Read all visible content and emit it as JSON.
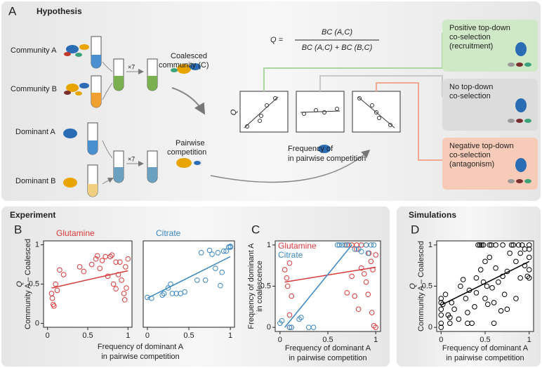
{
  "figure": {
    "panel_a": {
      "letter": "A",
      "title": "Hypothesis",
      "community_a": "Community A",
      "community_b": "Community B",
      "coalesced": [
        "Coalesced",
        "community (C)"
      ],
      "times_top": "×7",
      "dominant_a": "Dominant A",
      "dominant_b": "Dominant B",
      "pairwise": [
        "Pairwise",
        "competition"
      ],
      "times_bottom": "×7",
      "q_eq": "Q =",
      "numerator": "BC (A,C)",
      "denominator": "BC (A,C) + BC (B,C)",
      "q_axis": "Q",
      "freq_label": [
        "Frequency of",
        "in pairwise competition"
      ],
      "positive": [
        "Positive top-down",
        "co-selection",
        "(recruitment)"
      ],
      "none": [
        "No top-down",
        "co-selection"
      ],
      "negative": [
        "Negative top-down",
        "co-selection",
        "(antagonism)"
      ]
    },
    "experiment": {
      "title": "Experiment",
      "b": "B",
      "c": "C",
      "b_xlabel": [
        "Frequency of dominant A",
        "in pairwise competition"
      ]
    },
    "simulations": {
      "title": "Simulations",
      "d": "D"
    }
  },
  "chart_data": [
    {
      "type": "scatter",
      "xlim": [
        -0.05,
        1.05
      ],
      "ylim": [
        -0.05,
        1.05
      ],
      "xticks": [
        0,
        0.5,
        1
      ],
      "yticks": [
        0,
        0.5,
        1
      ],
      "ylabel": [
        "Q",
        "Community A – Coalesced"
      ],
      "series": [
        {
          "name": "Glutamine",
          "color": "#d93a3a",
          "x": [
            0.05,
            0.06,
            0.07,
            0.08,
            0.1,
            0.12,
            0.15,
            0.2,
            0.4,
            0.45,
            0.55,
            0.6,
            0.62,
            0.65,
            0.68,
            0.72,
            0.75,
            0.78,
            0.8,
            0.82,
            0.85,
            0.88,
            0.9,
            0.92,
            0.95,
            0.96,
            0.98,
            1.0,
            0.97,
            0.85
          ],
          "y": [
            0.38,
            0.32,
            0.24,
            0.22,
            0.5,
            0.42,
            0.68,
            0.62,
            0.72,
            0.66,
            0.75,
            0.82,
            0.86,
            0.7,
            0.8,
            0.85,
            0.6,
            0.85,
            0.87,
            0.5,
            0.44,
            0.62,
            0.78,
            0.55,
            0.38,
            0.3,
            0.45,
            0.82,
            0.72,
            0.78
          ],
          "fit": {
            "x": [
              0.05,
              1
            ],
            "y": [
              0.45,
              0.67
            ]
          }
        }
      ]
    },
    {
      "type": "scatter",
      "xlim": [
        -0.05,
        1.05
      ],
      "ylim": [
        -0.05,
        1.05
      ],
      "xticks": [
        0,
        0.5,
        1
      ],
      "series": [
        {
          "name": "Citrate",
          "color": "#3a86c0",
          "x": [
            0,
            0.05,
            0.18,
            0.2,
            0.25,
            0.28,
            0.3,
            0.35,
            0.4,
            0.45,
            0.6,
            0.65,
            0.7,
            0.75,
            0.78,
            0.82,
            0.85,
            0.88,
            0.9,
            0.92,
            0.95,
            0.98,
            1,
            1
          ],
          "y": [
            0.33,
            0.32,
            0.36,
            0.38,
            0.45,
            0.5,
            0.38,
            0.38,
            0.38,
            0.4,
            0.55,
            0.9,
            0.55,
            0.93,
            0.88,
            0.7,
            0.9,
            0.48,
            0.65,
            0.92,
            0.92,
            0.97,
            0.97,
            0.98
          ],
          "fit": {
            "x": [
              0,
              1
            ],
            "y": [
              0.32,
              0.85
            ]
          }
        }
      ]
    },
    {
      "type": "scatter",
      "xlim": [
        -0.05,
        1.05
      ],
      "ylim": [
        -0.05,
        1.05
      ],
      "xticks": [
        0,
        0.5,
        1
      ],
      "yticks": [
        0,
        0.5,
        1
      ],
      "xlabel": [
        "Frequency of dominant A",
        "in pairwise competition"
      ],
      "ylabel": [
        "Frequency of dominant A",
        "in coalescence"
      ],
      "legend": "upper left",
      "series": [
        {
          "name": "Glutamine",
          "color": "#d93a3a",
          "x": [
            0.05,
            0.07,
            0.1,
            0.08,
            0.12,
            0.1,
            0.1,
            0.7,
            0.75,
            0.8,
            0.82,
            0.85,
            0.88,
            0.9,
            0.92,
            0.95,
            0.96,
            0.98,
            1,
            0.97,
            0.9,
            0.85,
            0.8,
            0.75,
            0.7,
            0.93,
            0.78,
            1
          ],
          "y": [
            0.7,
            0.6,
            0.78,
            0.5,
            0.38,
            0.15,
            0.0,
            0.42,
            0.62,
            0.95,
            0.22,
            0.72,
            0.65,
            0.55,
            0.4,
            0.8,
            0.18,
            0.02,
            0.0,
            0.7,
            1,
            1,
            1,
            1,
            1,
            0.9,
            0.38,
            0.88
          ],
          "fit": {
            "x": [
              0.05,
              1
            ],
            "y": [
              0.55,
              0.73
            ]
          }
        },
        {
          "name": "Citrate",
          "color": "#3a86c0",
          "x": [
            0,
            0.02,
            0.1,
            0.12,
            0.2,
            0.22,
            0.3,
            0.35,
            0.6,
            0.62,
            0.65,
            0.68,
            0.72,
            0.78,
            0.82,
            0.85,
            0.9,
            0.95,
            0.98,
            0.92
          ],
          "y": [
            0.05,
            0.08,
            0,
            0,
            0.1,
            0.12,
            0,
            0,
            1,
            1,
            1,
            1,
            1,
            0.95,
            0.95,
            0.92,
            1,
            1,
            1,
            0.9
          ],
          "fit": {
            "x": [
              0.05,
              0.75
            ],
            "y": [
              0,
              1
            ]
          }
        }
      ]
    },
    {
      "type": "scatter",
      "xlim": [
        -0.05,
        1.05
      ],
      "ylim": [
        -0.05,
        1.05
      ],
      "xticks": [
        0,
        0.5,
        1
      ],
      "yticks": [
        0,
        0.5,
        1
      ],
      "xlabel": [
        "Frequency of dominant A",
        "in pairwise competition"
      ],
      "ylabel": [
        "Q",
        "Community A – Coalesced"
      ],
      "series": [
        {
          "color": "#000000",
          "x": [
            0,
            0,
            0,
            0,
            0,
            0,
            0.02,
            0.05,
            0.08,
            0.1,
            0.12,
            0.15,
            0.2,
            0.22,
            0.25,
            0.28,
            0.3,
            0.32,
            0.35,
            0.38,
            0.4,
            0.4,
            0.42,
            0.44,
            0.46,
            0.48,
            0.45,
            0.48,
            0.5,
            0.5,
            0.52,
            0.53,
            0.55,
            0.55,
            0.57,
            0.58,
            0.6,
            0.6,
            0.62,
            0.62,
            0.65,
            0.68,
            0.7,
            0.7,
            0.72,
            0.75,
            0.75,
            0.78,
            0.8,
            0.82,
            0.85,
            0.85,
            0.88,
            0.9,
            0.9,
            0.92,
            0.95,
            0.95,
            0.98,
            1,
            1,
            1,
            1,
            1,
            0.3,
            0.1
          ],
          "y": [
            0.35,
            0.3,
            0.22,
            0.15,
            0.05,
            0,
            0.28,
            0.4,
            0.15,
            0.05,
            0.3,
            0.22,
            0.1,
            0.5,
            0.58,
            0.35,
            0.18,
            0.45,
            0.05,
            0.25,
            0.42,
            0.6,
            1,
            1,
            1,
            1,
            0.7,
            0.55,
            0.35,
            0.8,
            0.5,
            0.28,
            0.85,
            1,
            1,
            0.48,
            0.05,
            0.3,
            0.72,
            1,
            0.55,
            0.2,
            0.62,
            1,
            0.4,
            0.22,
            0.68,
            0.9,
            1,
            1,
            0.35,
            0.8,
            1,
            0.6,
            0.9,
            1,
            0.75,
            0.95,
            0.62,
            0.6,
            0.7,
            0.85,
            0.95,
            1,
            0.05,
            0.12
          ],
          "fit": {
            "x": [
              0,
              1
            ],
            "y": [
              0.27,
              0.8
            ]
          }
        }
      ]
    }
  ]
}
